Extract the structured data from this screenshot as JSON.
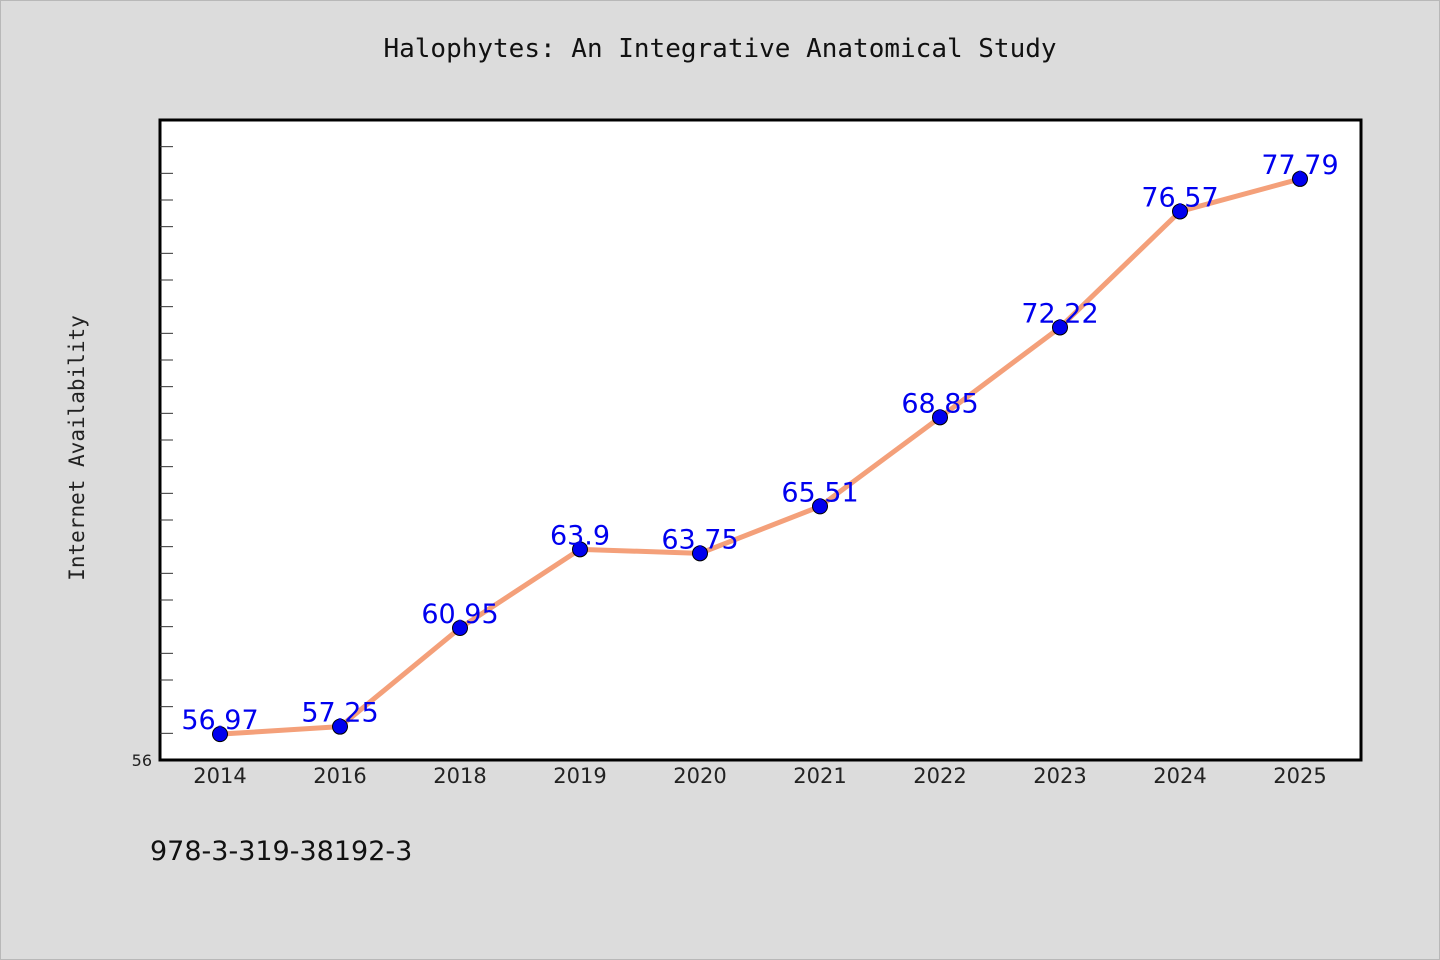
{
  "chart_data": {
    "type": "line",
    "title": "Halophytes: An Integrative Anatomical Study",
    "ylabel": "Internet Availability",
    "xlabel": "",
    "categories": [
      "2014",
      "2016",
      "2018",
      "2019",
      "2020",
      "2021",
      "2022",
      "2023",
      "2024",
      "2025"
    ],
    "series": [
      {
        "values": [
          56.97,
          57.25,
          60.95,
          63.9,
          63.75,
          65.51,
          68.85,
          72.22,
          76.57,
          77.79
        ],
        "data_labels": [
          "56.97",
          "57.25",
          "60.95",
          "63.9",
          "63.75",
          "65.51",
          "68.85",
          "72.22",
          "76.57",
          "77.79"
        ]
      }
    ],
    "y_tick_labels": [
      "56"
    ],
    "ylim": [
      56,
      80
    ],
    "grid": false,
    "line_color": "#f4a07a",
    "marker_color": "#0000ee",
    "label_color": "#0000ee"
  },
  "footer": {
    "isbn": "978-3-319-38192-3"
  }
}
